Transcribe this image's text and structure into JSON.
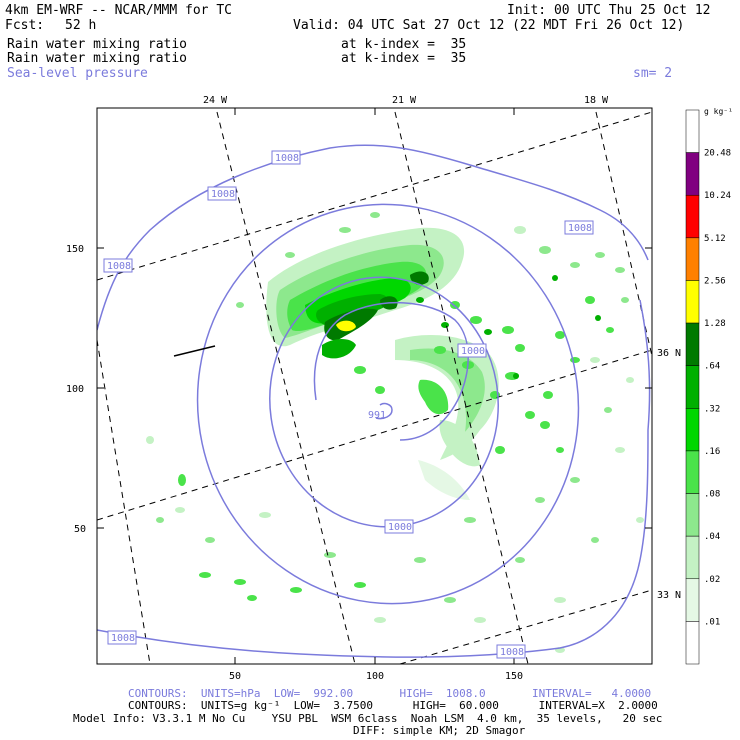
{
  "header": {
    "model_title": "4km EM-WRF -- NCAR/MMM for TC",
    "init": "Init: 00 UTC Thu 25 Oct 12",
    "fcst_label": "Fcst:",
    "fcst_value": "52 h",
    "valid": "Valid: 04 UTC Sat 27 Oct 12 (22 MDT Fri 26 Oct 12)",
    "field1": "Rain water mixing ratio",
    "field1_level": "at k-index =  35",
    "field2": "Rain water mixing ratio",
    "field2_level": "at k-index =  35",
    "field3": "Sea-level pressure",
    "smoothing": "sm= 2"
  },
  "map": {
    "top_lon_labels": [
      "24 W",
      "21 W",
      "18 W"
    ],
    "right_lat_labels": [
      "36 N",
      "33 N"
    ],
    "y_ticks": [
      "150",
      "100",
      "50"
    ],
    "x_ticks": [
      "50",
      "100",
      "150"
    ],
    "contour_labels": [
      "1008",
      "1008",
      "1008",
      "1008",
      "1008",
      "1000",
      "991",
      "1000",
      "1008"
    ],
    "low_center": "991",
    "slp_color": "#7b7bdc"
  },
  "colorbar": {
    "unit": "g kg⁻¹",
    "levels": [
      "20.48",
      "10.24",
      "5.12",
      "2.56",
      "1.28",
      ".64",
      ".32",
      ".16",
      ".08",
      ".04",
      ".02",
      ".01"
    ],
    "colors": [
      "#ffffff",
      "#800080",
      "#ff0000",
      "#ff8000",
      "#ffff00",
      "#007a00",
      "#00b000",
      "#00d700",
      "#4ae34a",
      "#8de88d",
      "#c4f2c4",
      "#e5f8e5",
      "#ffffff"
    ]
  },
  "footer": {
    "contours1": "CONTOURS:  UNITS=hPa  LOW=  992.00       HIGH=  1008.0       INTERVAL=   4.0000",
    "contours2": "CONTOURS:  UNITS=g kg⁻¹  LOW=  3.7500      HIGH=  60.000      INTERVAL=X  2.0000",
    "model_info": "Model Info: V3.3.1 M No Cu    YSU PBL  WSM 6class  Noah LSM  4.0 km,  35 levels,   20 sec",
    "diff": "DIFF: simple KM; 2D Smagor"
  }
}
